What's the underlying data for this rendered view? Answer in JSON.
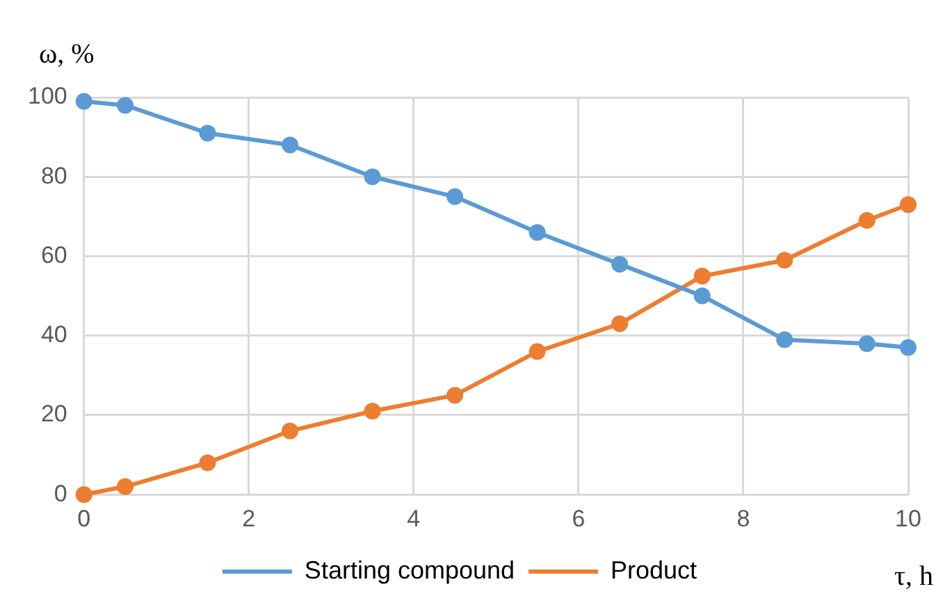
{
  "chart_data": {
    "type": "line",
    "xlabel": "τ, h",
    "ylabel": "ω, %",
    "x": [
      0,
      0.5,
      1.5,
      2.5,
      3.5,
      4.5,
      5.5,
      6.5,
      7.5,
      8.5,
      9.5,
      10
    ],
    "series": [
      {
        "name": "Starting compound",
        "color": "#5b9bd5",
        "values": [
          99,
          98,
          91,
          88,
          80,
          75,
          66,
          58,
          50,
          39,
          38,
          37
        ]
      },
      {
        "name": "Product",
        "color": "#ed7d31",
        "values": [
          0,
          2,
          8,
          16,
          21,
          25,
          36,
          43,
          55,
          59,
          69,
          73
        ]
      }
    ],
    "xlim": [
      0,
      10
    ],
    "xticks": [
      0,
      2,
      4,
      6,
      8,
      10
    ],
    "ylim": [
      0,
      100
    ],
    "yticks": [
      0,
      20,
      40,
      60,
      80,
      100
    ],
    "grid": true,
    "legend": "bottom",
    "marker": "circle",
    "line_style": "solid"
  }
}
